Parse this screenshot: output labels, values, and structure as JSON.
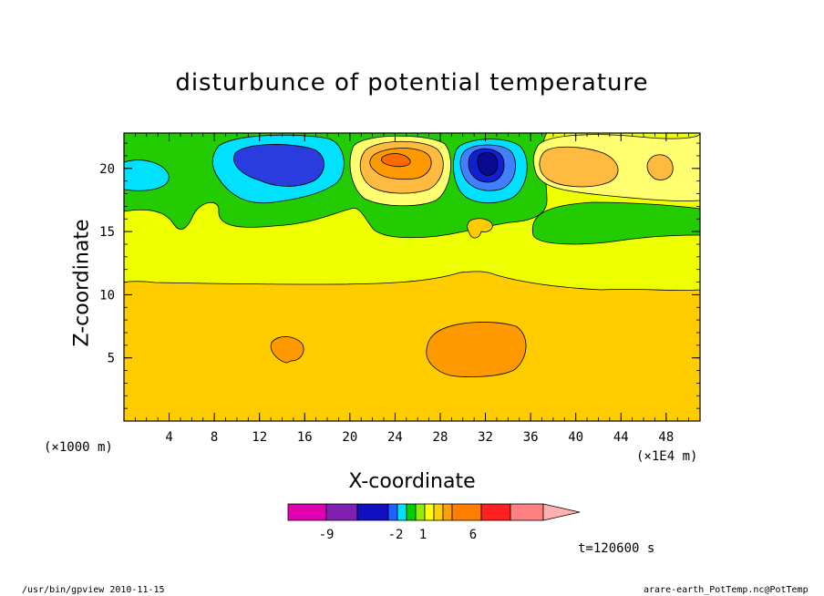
{
  "chart_data": {
    "type": "heatmap",
    "title": "disturbunce of potential temperature",
    "xlabel": "X-coordinate",
    "ylabel": "Z-coordinate",
    "x_unit_left": "(×1000 m)",
    "x_unit_right": "(×1E4 m)",
    "xlim": [
      0,
      51
    ],
    "ylim": [
      0,
      22.8
    ],
    "xticks": [
      4,
      8,
      12,
      16,
      20,
      24,
      28,
      32,
      36,
      40,
      44,
      48
    ],
    "yticks": [
      5,
      10,
      15,
      20
    ],
    "colorbar": {
      "colors": [
        "#e000b0",
        "#8020b0",
        "#1010c0",
        "#2060ff",
        "#00e0ff",
        "#00d000",
        "#90ee00",
        "#ffff00",
        "#ffd000",
        "#ffa000",
        "#ff8000",
        "#ff2020",
        "#ff8080",
        "#ffb0b0"
      ],
      "tick_labels": [
        "-9",
        "-2",
        "1",
        "6"
      ],
      "tick_after_index": [
        1,
        3,
        6,
        10
      ]
    },
    "regions": [
      {
        "level": "orange-light",
        "color": "#ffd000",
        "desc": "lower layer"
      },
      {
        "level": "yellow",
        "color": "#ffff00",
        "desc": "middle layer"
      },
      {
        "level": "green",
        "color": "#00d000",
        "desc": "upper layer"
      }
    ]
  },
  "annotations": {
    "time": "t=120600 s",
    "footer_left": "/usr/bin/gpview  2010-11-15",
    "footer_right": "arare-earth_PotTemp.nc@PotTemp"
  },
  "colors": {
    "orange_light": "#ffcc00",
    "orange": "#ff9900",
    "yellow": "#eeff00",
    "green": "#22cc00",
    "cyan": "#00e0ff",
    "blue": "#0000dd",
    "navy": "#0000aa",
    "light_blue": "#4080ff",
    "light_yellow": "#ffff70",
    "light_orange": "#ffbb40",
    "red_orange": "#ff6a00"
  }
}
